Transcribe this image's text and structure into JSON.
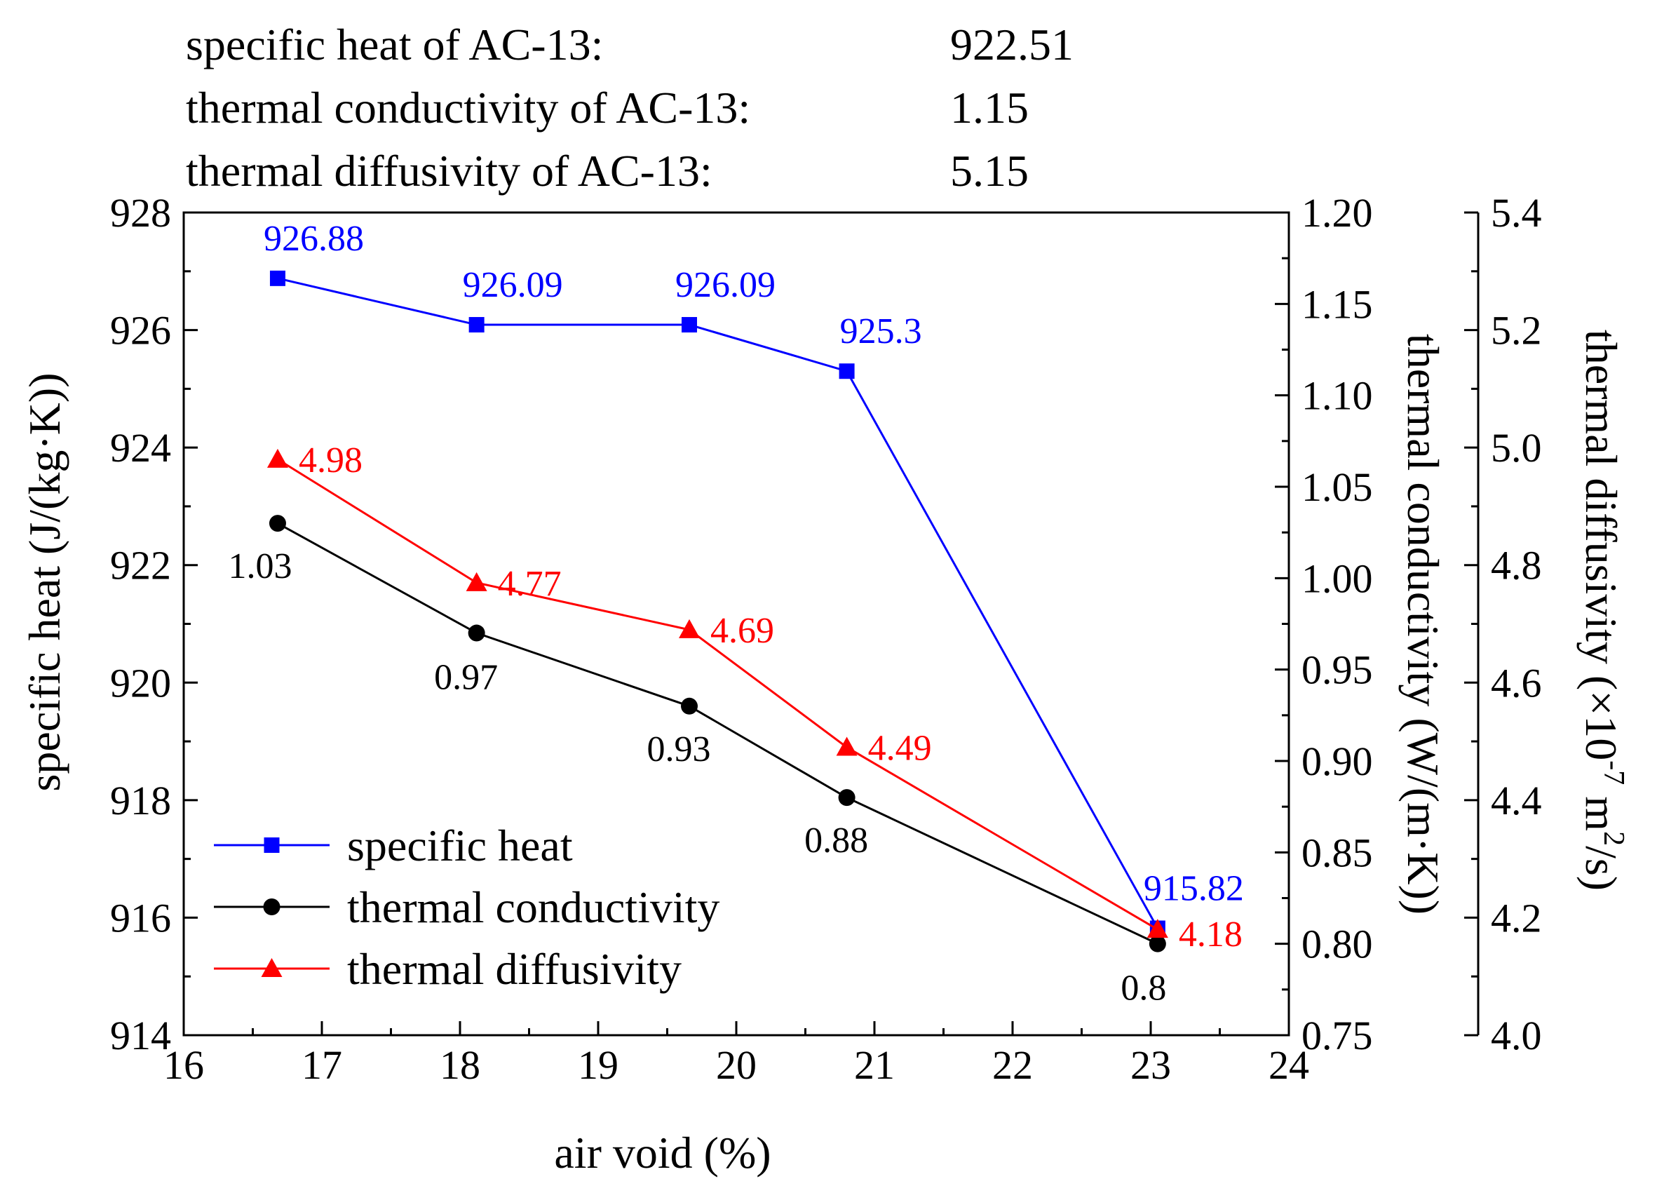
{
  "reference": {
    "rows": [
      {
        "label": "specific heat of AC-13:",
        "value": "922.51"
      },
      {
        "label": "thermal conductivity of AC-13:",
        "value": "1.15"
      },
      {
        "label": "thermal diffusivity of AC-13:",
        "value": "5.15"
      }
    ]
  },
  "colors": {
    "specific_heat": "#0000ff",
    "thermal_conductivity": "#000000",
    "thermal_diffusivity": "#ff0000",
    "axis": "#000000"
  },
  "chart_data": {
    "type": "line",
    "xlabel": "air void (%)",
    "xlim": [
      16,
      24
    ],
    "xticks": [
      "16",
      "17",
      "18",
      "19",
      "20",
      "21",
      "22",
      "23",
      "24"
    ],
    "axes": {
      "left": {
        "label": "specific heat (J/(kg·K))",
        "lim": [
          914,
          928
        ],
        "ticks": [
          "914",
          "916",
          "918",
          "920",
          "922",
          "924",
          "926",
          "928"
        ]
      },
      "right1": {
        "label": "thermal conductivity (W/(m·K))",
        "lim": [
          0.75,
          1.2
        ],
        "ticks": [
          "0.75",
          "0.80",
          "0.85",
          "0.90",
          "0.95",
          "1.00",
          "1.05",
          "1.10",
          "1.15",
          "1.20"
        ]
      },
      "right2": {
        "label_main": "thermal diffusivity (×10",
        "label_sup1": "-7",
        "label_mid": " m",
        "label_sup2": "2",
        "label_end": "/s)",
        "lim": [
          4.0,
          5.4
        ],
        "ticks": [
          "4.0",
          "4.2",
          "4.4",
          "4.6",
          "4.8",
          "5.0",
          "5.2",
          "5.4"
        ]
      }
    },
    "series": [
      {
        "name": "specific heat",
        "axis": "left",
        "marker": "square",
        "color": "#0000ff",
        "x": [
          16.68,
          18.12,
          19.66,
          20.8,
          23.05
        ],
        "values": [
          926.88,
          926.09,
          926.09,
          925.3,
          915.82
        ],
        "labels": [
          "926.88",
          "926.09",
          "926.09",
          "925.3",
          "915.82"
        ]
      },
      {
        "name": "thermal conductivity",
        "axis": "right1",
        "marker": "circle",
        "color": "#000000",
        "x": [
          16.68,
          18.12,
          19.66,
          20.8,
          23.05
        ],
        "values": [
          1.03,
          0.97,
          0.93,
          0.88,
          0.8
        ],
        "labels": [
          "1.03",
          "0.97",
          "0.93",
          "0.88",
          "0.8"
        ]
      },
      {
        "name": "thermal diffusivity",
        "axis": "right2",
        "marker": "triangle",
        "color": "#ff0000",
        "x": [
          16.68,
          18.12,
          19.66,
          20.8,
          23.05
        ],
        "values": [
          4.98,
          4.77,
          4.69,
          4.49,
          4.18
        ],
        "labels": [
          "4.98",
          "4.77",
          "4.69",
          "4.49",
          "4.18"
        ]
      }
    ],
    "legend": {
      "position": "bottom-left",
      "entries": [
        "specific heat",
        "thermal conductivity",
        "thermal diffusivity"
      ]
    }
  }
}
